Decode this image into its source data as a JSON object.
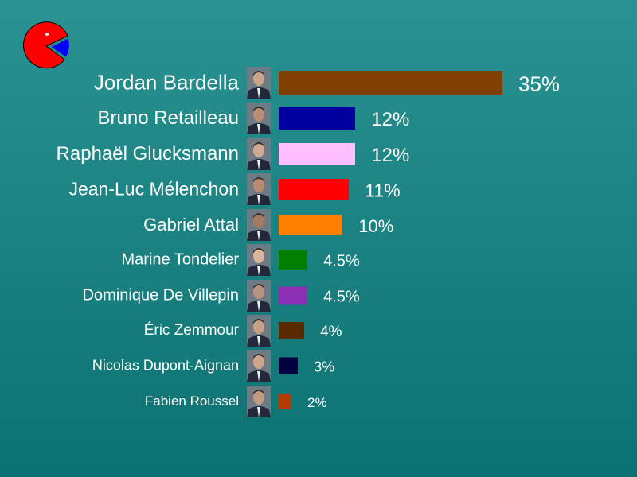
{
  "chart_data": {
    "type": "bar",
    "orientation": "horizontal",
    "categories": [
      "Jordan Bardella",
      "Bruno Retailleau",
      "Raphaël Glucksmann",
      "Jean-Luc Mélenchon",
      "Gabriel Attal",
      "Marine Tondelier",
      "Dominique De Villepin",
      "Éric Zemmour",
      "Nicolas Dupont-Aignan",
      "Fabien Roussel"
    ],
    "values": [
      35,
      12,
      12,
      11,
      10,
      4.5,
      4.5,
      4,
      3,
      2
    ],
    "labels": [
      "35%",
      "12%",
      "12%",
      "11%",
      "10%",
      "4.5%",
      "4.5%",
      "4%",
      "3%",
      "2%"
    ],
    "colors": [
      "#7f3f00",
      "#00009f",
      "#ffbfff",
      "#ff0000",
      "#ff7f00",
      "#007f00",
      "#8b2fb5",
      "#5a2a00",
      "#00003f",
      "#b03a00"
    ],
    "grid": false
  },
  "logo_colors": {
    "main": "#ff0000",
    "slice": "#0000ff"
  }
}
